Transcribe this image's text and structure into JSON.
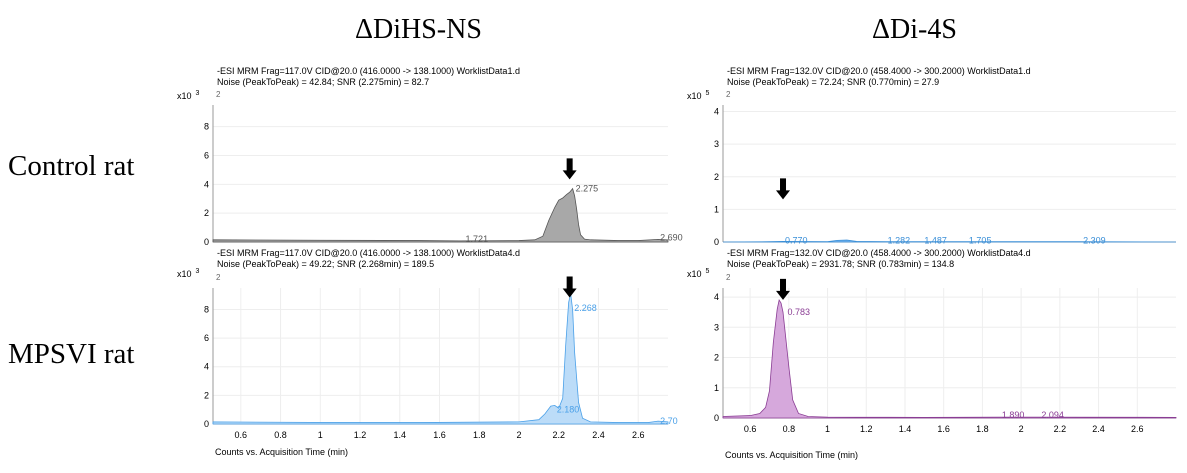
{
  "column_titles": [
    "ΔDiHS-NS",
    "ΔDi-4S"
  ],
  "row_labels": [
    "Control rat",
    "MPSVI rat"
  ],
  "x_axis_label": "Counts vs. Acquisition Time (min)",
  "chart_data": [
    {
      "type": "area",
      "panel": "top-left",
      "header": [
        "-ESI MRM Frag=117.0V CID@20.0 (416.0000 -> 138.1000) WorklistData1.d",
        "Noise (PeakToPeak) = 42.84; SNR (2.275min) = 82.7"
      ],
      "y_multiplier": "x10",
      "y_exponent": "3",
      "color": "#a8a8a8",
      "stroke": "#555555",
      "xlim": [
        0.46,
        2.75
      ],
      "ylim": [
        0,
        9.5
      ],
      "yticks": [
        0,
        2,
        4,
        6,
        8
      ],
      "xticks": [],
      "ytop_label": "2",
      "x": [
        0.46,
        1.0,
        1.5,
        1.7,
        2.0,
        2.08,
        2.12,
        2.15,
        2.18,
        2.2,
        2.22,
        2.24,
        2.255,
        2.27,
        2.28,
        2.29,
        2.3,
        2.31,
        2.33,
        2.36,
        2.5,
        2.6,
        2.7,
        2.75
      ],
      "y": [
        0.15,
        0.12,
        0.1,
        0.08,
        0.1,
        0.15,
        0.4,
        1.5,
        2.4,
        2.9,
        3.05,
        3.3,
        3.45,
        3.7,
        3.2,
        2.3,
        1.2,
        0.5,
        0.2,
        0.15,
        0.1,
        0.1,
        0.18,
        0.15
      ],
      "labels": [
        {
          "text": "2.275",
          "x": 2.275,
          "y": 3.7
        },
        {
          "text": "1.721",
          "x": 1.721,
          "y": 0.2
        },
        {
          "text": "2.690",
          "x": 2.7,
          "y": 0.3
        }
      ],
      "arrow": {
        "x": 2.255,
        "y": 5.8
      }
    },
    {
      "type": "area",
      "panel": "top-right",
      "header": [
        "-ESI MRM Frag=132.0V CID@20.0 (458.4000 -> 300.2000) WorklistData1.d",
        "Noise (PeakToPeak) = 72.24; SNR (0.770min) = 27.9"
      ],
      "y_multiplier": "x10",
      "y_exponent": "5",
      "color": "#7ab6ee",
      "stroke": "#3a8fd8",
      "xlim": [
        0.46,
        2.8
      ],
      "ylim": [
        0,
        4.2
      ],
      "yticks": [
        0,
        1,
        2,
        3,
        4
      ],
      "xticks": [],
      "ytop_label": "2",
      "x": [
        0.46,
        0.7,
        0.77,
        1.0,
        1.05,
        1.1,
        1.15,
        1.3,
        1.5,
        1.7,
        2.0,
        2.3,
        2.8
      ],
      "y": [
        0.0,
        0.01,
        0.02,
        0.01,
        0.05,
        0.06,
        0.02,
        0.01,
        0.01,
        0.01,
        0.01,
        0.01,
        0.0
      ],
      "labels": [
        {
          "text": "0.770",
          "x": 0.77,
          "y": 0.05
        },
        {
          "text": "1.282",
          "x": 1.3,
          "y": 0.05
        },
        {
          "text": "1.487",
          "x": 1.49,
          "y": 0.05
        },
        {
          "text": "1.705",
          "x": 1.72,
          "y": 0.05
        },
        {
          "text": "2.309",
          "x": 2.31,
          "y": 0.05
        }
      ],
      "arrow": {
        "x": 0.77,
        "y": 1.95
      }
    },
    {
      "type": "area",
      "panel": "bottom-left",
      "header": [
        "-ESI MRM Frag=117.0V CID@20.0 (416.0000 -> 138.1000) WorklistData4.d",
        "Noise (PeakToPeak) = 49.22; SNR (2.268min) = 189.5"
      ],
      "y_multiplier": "x10",
      "y_exponent": "3",
      "color": "#bcdcf8",
      "stroke": "#4aa0e8",
      "xlim": [
        0.46,
        2.75
      ],
      "ylim": [
        0,
        9.5
      ],
      "yticks": [
        0,
        2,
        4,
        6,
        8
      ],
      "xticks": [
        0.6,
        0.8,
        1,
        1.2,
        1.4,
        1.6,
        1.8,
        2,
        2.2,
        2.4,
        2.6
      ],
      "ytop_label": "2",
      "x": [
        0.46,
        0.8,
        1.1,
        1.5,
        2.0,
        2.1,
        2.13,
        2.16,
        2.18,
        2.2,
        2.22,
        2.235,
        2.25,
        2.26,
        2.27,
        2.28,
        2.3,
        2.32,
        2.36,
        2.5,
        2.65,
        2.7,
        2.75
      ],
      "y": [
        0.15,
        0.12,
        0.1,
        0.1,
        0.15,
        0.3,
        0.7,
        1.25,
        1.3,
        1.1,
        1.8,
        5.5,
        8.5,
        9.1,
        8.0,
        5.0,
        1.5,
        0.4,
        0.15,
        0.1,
        0.1,
        0.2,
        0.15
      ],
      "labels": [
        {
          "text": "2.268",
          "x": 2.268,
          "y": 8.1
        },
        {
          "text": "2.180",
          "x": 2.18,
          "y": 1.0
        },
        {
          "text": "2.70",
          "x": 2.7,
          "y": 0.2
        }
      ],
      "arrow": {
        "x": 2.255,
        "y": 10.3
      }
    },
    {
      "type": "area",
      "panel": "bottom-right",
      "header": [
        "-ESI MRM Frag=132.0V CID@20.0 (458.4000 -> 300.2000) WorklistData4.d",
        "Noise (PeakToPeak) = 2931.78; SNR (0.783min) = 134.8"
      ],
      "y_multiplier": "x10",
      "y_exponent": "5",
      "color": "#d6a8dc",
      "stroke": "#8a3d94",
      "xlim": [
        0.46,
        2.8
      ],
      "ylim": [
        0,
        4.3
      ],
      "yticks": [
        0,
        1,
        2,
        3,
        4
      ],
      "xticks": [
        0.6,
        0.8,
        1,
        1.2,
        1.4,
        1.6,
        1.8,
        2,
        2.2,
        2.4,
        2.6
      ],
      "ytop_label": "2",
      "x": [
        0.46,
        0.6,
        0.65,
        0.68,
        0.7,
        0.72,
        0.74,
        0.75,
        0.76,
        0.77,
        0.78,
        0.8,
        0.82,
        0.85,
        0.9,
        1.0,
        1.5,
        1.89,
        2.09,
        2.8
      ],
      "y": [
        0.05,
        0.08,
        0.15,
        0.35,
        0.9,
        2.5,
        3.6,
        3.9,
        3.8,
        3.5,
        2.9,
        1.7,
        0.6,
        0.15,
        0.05,
        0.03,
        0.02,
        0.03,
        0.03,
        0.02
      ],
      "labels": [
        {
          "text": "0.783",
          "x": 0.783,
          "y": 3.5
        },
        {
          "text": "1.890",
          "x": 1.89,
          "y": 0.1
        },
        {
          "text": "2.094",
          "x": 2.094,
          "y": 0.1
        }
      ],
      "arrow": {
        "x": 0.77,
        "y": 4.6
      }
    }
  ]
}
